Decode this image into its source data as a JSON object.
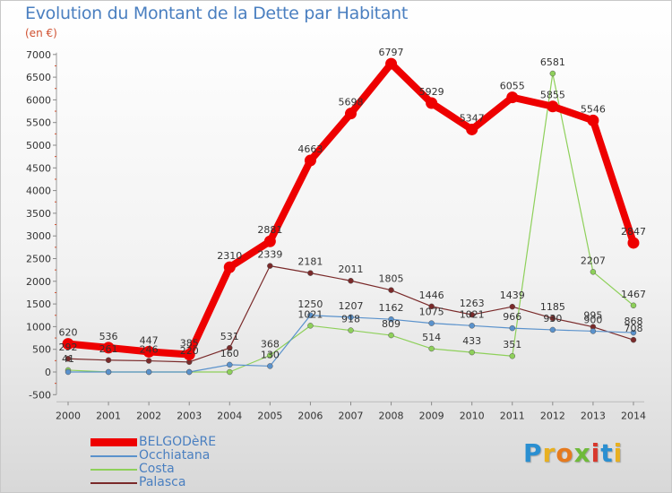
{
  "chart_data": {
    "type": "line",
    "title": "Evolution du Montant de la Dette par Habitant",
    "subtitle": "(en €)",
    "x": [
      "2000",
      "2001",
      "2002",
      "2003",
      "2004",
      "2005",
      "2006",
      "2007",
      "2008",
      "2009",
      "2010",
      "2011",
      "2012",
      "2013",
      "2014"
    ],
    "ylim": [
      -500,
      7000
    ],
    "yticks": [
      -500,
      0,
      500,
      1000,
      1500,
      2000,
      2500,
      3000,
      3500,
      4000,
      4500,
      5000,
      5500,
      6000,
      6500,
      7000
    ],
    "grid": false,
    "legend_position": "bottom-left",
    "series": [
      {
        "name": "Palasca",
        "color": "#7a2a2a",
        "values": [
          292,
          261,
          246,
          220,
          531,
          2339,
          2181,
          2011,
          1805,
          1446,
          1263,
          1439,
          1185,
          995,
          708
        ]
      },
      {
        "name": "Costa",
        "color": "#8ed05a",
        "values": [
          41,
          0,
          0,
          0,
          0,
          368,
          1021,
          918,
          809,
          514,
          433,
          351,
          6581,
          2207,
          1467
        ]
      },
      {
        "name": "Occhiatana",
        "color": "#5a92cc",
        "values": [
          0,
          0,
          0,
          0,
          160,
          130,
          1250,
          1207,
          1162,
          1075,
          1021,
          966,
          930,
          900,
          868
        ]
      },
      {
        "name": "BELGODèRE",
        "color": "#ee0000",
        "values": [
          620,
          536,
          447,
          385,
          2310,
          2881,
          4663,
          5698,
          6797,
          5929,
          5347,
          6055,
          5855,
          5546,
          2847
        ]
      }
    ],
    "annotations": [
      {
        "series": "BELGODèRE",
        "labels": [
          "620",
          "536",
          "447",
          "385",
          "2310",
          "2881",
          "4663",
          "5698",
          "6797",
          "5929",
          "5347",
          "6055",
          "5855",
          "5546",
          "2847"
        ]
      },
      {
        "series": "Palasca",
        "labels": [
          "292",
          "261",
          "246",
          "220",
          "531",
          "2339",
          "2181",
          "2011",
          "1805",
          "1446",
          "1263",
          "1439",
          "1185",
          "995",
          "708"
        ]
      },
      {
        "series": "Occhiatana",
        "labels": [
          "",
          "",
          "",
          "",
          "160",
          "130",
          "1250",
          "1207",
          "1162",
          "1075",
          "1021",
          "966",
          "930",
          "900",
          "868"
        ]
      },
      {
        "series": "Costa",
        "labels": [
          "41",
          "",
          "",
          "",
          "",
          "368",
          "1021",
          "918",
          "809",
          "514",
          "433",
          "351",
          "6581",
          "2207",
          "1467"
        ]
      }
    ]
  },
  "legend": [
    {
      "label": "BELGODèRE",
      "color": "#ee0000"
    },
    {
      "label": "Occhiatana",
      "color": "#5a92cc"
    },
    {
      "label": "Costa",
      "color": "#8ed05a"
    },
    {
      "label": "Palasca",
      "color": "#7a2a2a"
    }
  ],
  "logo": {
    "text": "Proxiti"
  }
}
